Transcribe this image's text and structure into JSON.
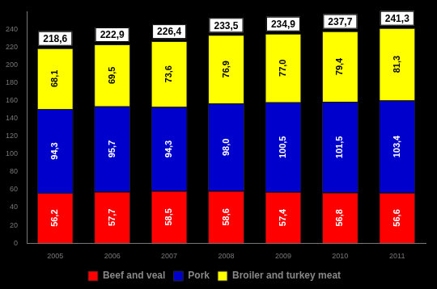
{
  "chart_data": {
    "type": "bar",
    "stacked": true,
    "grid": false,
    "legend": "bottom",
    "data_labels": true,
    "categories": [
      "2005",
      "2006",
      "2007",
      "2008",
      "2009",
      "2010",
      "2011"
    ],
    "series": [
      {
        "name": "Beef and veal",
        "color": "#ff0000",
        "values": [
          56.2,
          57.7,
          58.5,
          58.6,
          57.4,
          56.8,
          56.6
        ],
        "value_labels": [
          "56,2",
          "57,7",
          "58,5",
          "58,6",
          "57,4",
          "56,8",
          "56,6"
        ]
      },
      {
        "name": "Pork",
        "color": "#0000cc",
        "values": [
          94.3,
          95.7,
          94.3,
          98.0,
          100.5,
          101.5,
          103.4
        ],
        "value_labels": [
          "94,3",
          "95,7",
          "94,3",
          "98,0",
          "100,5",
          "101,5",
          "103,4"
        ]
      },
      {
        "name": "Broiler and turkey meat",
        "color": "#ffff00",
        "values": [
          68.1,
          69.5,
          73.6,
          76.9,
          77.0,
          79.4,
          81.3
        ],
        "value_labels": [
          "68,1",
          "69,5",
          "73,6",
          "76,9",
          "77,0",
          "79,4",
          "81,3"
        ]
      }
    ],
    "totals": {
      "values": [
        218.6,
        222.9,
        226.4,
        233.5,
        234.9,
        237.7,
        241.3
      ],
      "value_labels": [
        "218,6",
        "222,9",
        "226,4",
        "233,5",
        "234,9",
        "237,7",
        "241,3"
      ]
    },
    "ylim": [
      0,
      260
    ],
    "yticks": [
      0,
      20,
      40,
      60,
      80,
      100,
      120,
      140,
      160,
      180,
      200,
      220,
      240
    ]
  }
}
